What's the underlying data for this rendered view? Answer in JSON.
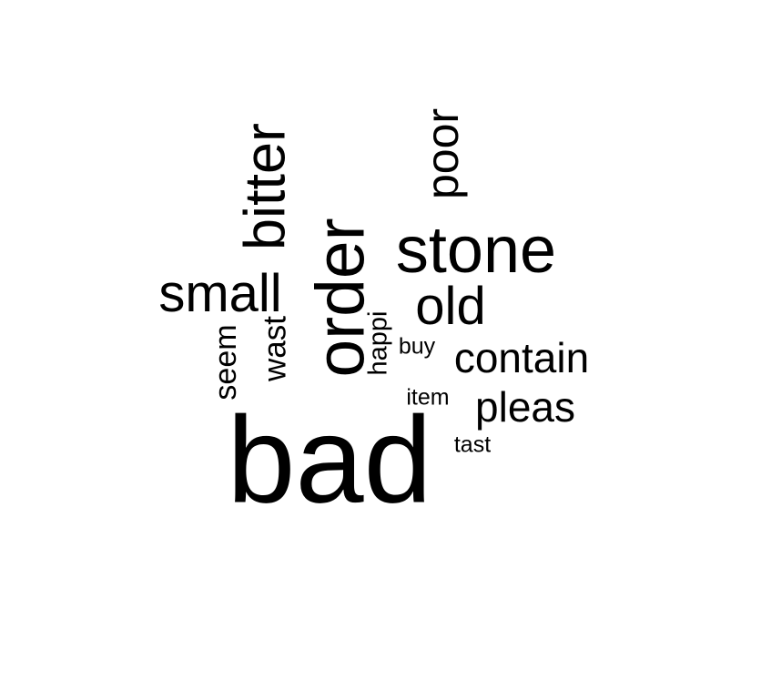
{
  "words": [
    {
      "text": "bad"
    },
    {
      "text": "order"
    },
    {
      "text": "stone"
    },
    {
      "text": "bitter"
    },
    {
      "text": "small"
    },
    {
      "text": "poor"
    },
    {
      "text": "old"
    },
    {
      "text": "contain"
    },
    {
      "text": "pleas"
    },
    {
      "text": "wast"
    },
    {
      "text": "seem"
    },
    {
      "text": "happi"
    },
    {
      "text": "buy"
    },
    {
      "text": "item"
    },
    {
      "text": "tast"
    }
  ]
}
